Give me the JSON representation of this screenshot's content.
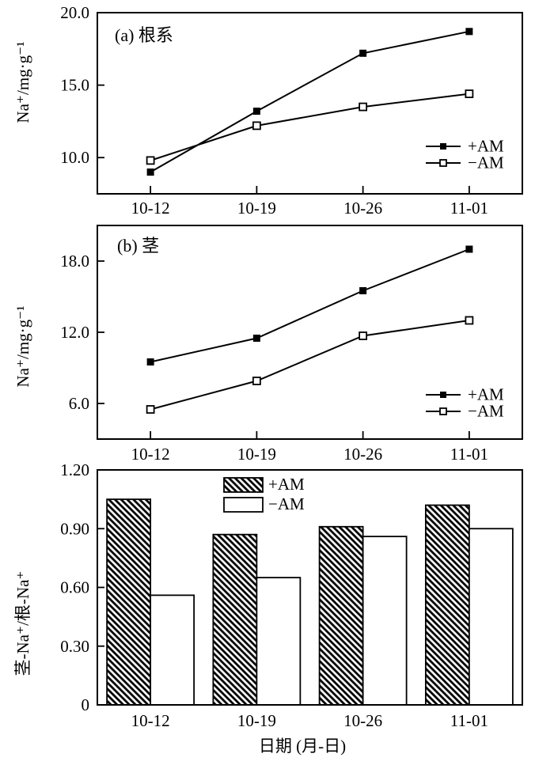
{
  "figure": {
    "background": "#ffffff",
    "ink_color": "#000000",
    "categories": [
      "10-12",
      "10-19",
      "10-26",
      "11-01"
    ],
    "xlabel": "日期 (月-日)"
  },
  "chart_data": [
    {
      "type": "line",
      "panel_label": "(a) 根系",
      "ylabel": "Na⁺/mg·g⁻¹",
      "xlabel": "",
      "categories": [
        "10-12",
        "10-19",
        "10-26",
        "11-01"
      ],
      "series": [
        {
          "name": "+AM",
          "marker": "filled-square",
          "values": [
            9.0,
            13.2,
            17.2,
            18.7
          ]
        },
        {
          "name": "−AM",
          "marker": "open-square",
          "values": [
            9.8,
            12.2,
            13.5,
            14.4
          ]
        }
      ],
      "ytick_labels": [
        "10.0",
        "15.0",
        "20.0"
      ],
      "ytick_values": [
        10,
        15,
        20
      ],
      "ylim": [
        7.5,
        20
      ],
      "grid": false,
      "legend_position": "lower-right"
    },
    {
      "type": "line",
      "panel_label": "(b) 茎",
      "ylabel": "Na⁺/mg·g⁻¹",
      "xlabel": "",
      "categories": [
        "10-12",
        "10-19",
        "10-26",
        "11-01"
      ],
      "series": [
        {
          "name": "+AM",
          "marker": "filled-square",
          "values": [
            9.5,
            11.5,
            15.5,
            19.0
          ]
        },
        {
          "name": "−AM",
          "marker": "open-square",
          "values": [
            5.5,
            7.9,
            11.7,
            13.0
          ]
        }
      ],
      "ytick_labels": [
        "6.0",
        "12.0",
        "18.0"
      ],
      "ytick_values": [
        6,
        12,
        18
      ],
      "ylim": [
        3,
        21
      ],
      "grid": false,
      "legend_position": "lower-right"
    },
    {
      "type": "bar",
      "panel_label": "",
      "ylabel": "茎-Na⁺/根-Na⁺",
      "xlabel": "日期 (月-日)",
      "categories": [
        "10-12",
        "10-19",
        "10-26",
        "11-01"
      ],
      "series": [
        {
          "name": "+AM",
          "fill": "hatch-diagonal",
          "values": [
            1.05,
            0.87,
            0.91,
            1.02
          ]
        },
        {
          "name": "−AM",
          "fill": "white",
          "values": [
            0.56,
            0.65,
            0.86,
            0.9
          ]
        }
      ],
      "ytick_labels": [
        "0",
        "0.30",
        "0.60",
        "0.90",
        "1.20"
      ],
      "ytick_values": [
        0,
        0.3,
        0.6,
        0.9,
        1.2
      ],
      "ylim": [
        0,
        1.2
      ],
      "grid": false,
      "legend_position": "upper-center"
    }
  ]
}
